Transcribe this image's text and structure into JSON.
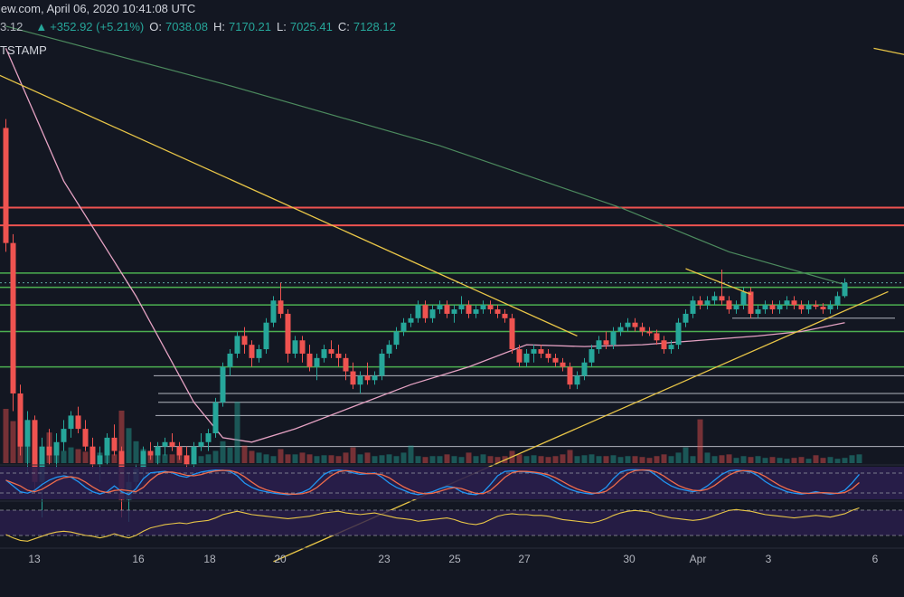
{
  "header": {
    "source_line": "iew.com, April 06, 2020 10:41:08 UTC",
    "last_price_fragment": "3.12",
    "change_arrow": "▲",
    "change": "+352.92 (+5.21%)",
    "open_label": "O:",
    "open": "7038.08",
    "high_label": "H:",
    "high": "7170.21",
    "low_label": "L:",
    "low": "7025.41",
    "close_label": "C:",
    "close": "7128.12",
    "exchange": "TSTAMP"
  },
  "colors": {
    "background": "#131722",
    "up": "#26a69a",
    "down": "#ef5350",
    "resistance": "#ef5350",
    "support": "#4caf50",
    "trendline": "#e8c547",
    "ma_pink": "#e5a2c3",
    "ma_green": "#4c8a5e",
    "stoch_k": "#2196f3",
    "stoch_d": "#ef6c4b",
    "rsi": "#e8c547",
    "panel_fill": "#2a1e4d"
  },
  "chart_data": {
    "type": "candlestick",
    "x_tick_labels": [
      "13",
      "16",
      "18",
      "20",
      "23",
      "25",
      "27",
      "30",
      "Apr",
      "3",
      "6"
    ],
    "candles": [
      [
        8900,
        9000,
        7500,
        7600
      ],
      [
        7600,
        7700,
        5700,
        5900
      ],
      [
        5900,
        6000,
        5200,
        5300
      ],
      [
        5300,
        5700,
        5000,
        5600
      ],
      [
        5600,
        5650,
        4800,
        4900
      ],
      [
        4900,
        5400,
        4500,
        5300
      ],
      [
        5300,
        5500,
        5100,
        5200
      ],
      [
        5200,
        5450,
        5050,
        5350
      ],
      [
        5350,
        5600,
        5250,
        5500
      ],
      [
        5500,
        5700,
        5400,
        5650
      ],
      [
        5650,
        5750,
        5450,
        5500
      ],
      [
        5500,
        5600,
        5250,
        5300
      ],
      [
        5300,
        5400,
        5050,
        5100
      ],
      [
        5100,
        5300,
        4900,
        5200
      ],
      [
        5200,
        5450,
        5100,
        5400
      ],
      [
        5400,
        5550,
        5200,
        5250
      ],
      [
        5250,
        5300,
        4500,
        4700
      ],
      [
        4700,
        5000,
        4450,
        4900
      ],
      [
        4900,
        5100,
        4800,
        5050
      ],
      [
        5050,
        5300,
        4950,
        5250
      ],
      [
        5250,
        5350,
        5150,
        5200
      ],
      [
        5200,
        5350,
        5100,
        5300
      ],
      [
        5300,
        5400,
        5200,
        5350
      ],
      [
        5350,
        5450,
        5250,
        5300
      ],
      [
        5300,
        5350,
        5150,
        5200
      ],
      [
        5200,
        5300,
        5050,
        5100
      ],
      [
        5100,
        5350,
        5050,
        5300
      ],
      [
        5300,
        5450,
        5250,
        5350
      ],
      [
        5350,
        5500,
        5250,
        5450
      ],
      [
        5450,
        5850,
        5400,
        5800
      ],
      [
        5800,
        6250,
        5750,
        6200
      ],
      [
        6200,
        6400,
        6100,
        6350
      ],
      [
        6350,
        6600,
        6300,
        6550
      ],
      [
        6550,
        6650,
        6350,
        6450
      ],
      [
        6450,
        6500,
        6200,
        6300
      ],
      [
        6300,
        6450,
        6250,
        6400
      ],
      [
        6400,
        6750,
        6350,
        6700
      ],
      [
        6700,
        7000,
        6650,
        6950
      ],
      [
        6950,
        7150,
        6750,
        6800
      ],
      [
        6800,
        6850,
        6250,
        6350
      ],
      [
        6350,
        6550,
        6300,
        6500
      ],
      [
        6500,
        6550,
        6250,
        6350
      ],
      [
        6350,
        6450,
        6150,
        6200
      ],
      [
        6200,
        6350,
        6050,
        6300
      ],
      [
        6300,
        6450,
        6250,
        6400
      ],
      [
        6400,
        6500,
        6300,
        6350
      ],
      [
        6350,
        6450,
        6200,
        6300
      ],
      [
        6300,
        6350,
        6050,
        6150
      ],
      [
        6150,
        6250,
        5950,
        6000
      ],
      [
        6000,
        6150,
        5900,
        6100
      ],
      [
        6100,
        6250,
        6000,
        6050
      ],
      [
        6050,
        6150,
        6000,
        6100
      ],
      [
        6100,
        6400,
        6050,
        6350
      ],
      [
        6350,
        6500,
        6300,
        6450
      ],
      [
        6450,
        6650,
        6400,
        6600
      ],
      [
        6600,
        6750,
        6550,
        6700
      ],
      [
        6700,
        6800,
        6650,
        6750
      ],
      [
        6750,
        6950,
        6700,
        6900
      ],
      [
        6900,
        6950,
        6700,
        6750
      ],
      [
        6750,
        6900,
        6700,
        6850
      ],
      [
        6850,
        6950,
        6800,
        6900
      ],
      [
        6900,
        6950,
        6750,
        6800
      ],
      [
        6800,
        6900,
        6700,
        6850
      ],
      [
        6850,
        7000,
        6800,
        6900
      ],
      [
        6900,
        6950,
        6750,
        6800
      ],
      [
        6800,
        6900,
        6750,
        6850
      ],
      [
        6850,
        6950,
        6800,
        6900
      ],
      [
        6900,
        6950,
        6800,
        6850
      ],
      [
        6850,
        6900,
        6750,
        6800
      ],
      [
        6800,
        6850,
        6700,
        6750
      ],
      [
        6750,
        6800,
        6350,
        6400
      ],
      [
        6400,
        6450,
        6200,
        6250
      ],
      [
        6250,
        6400,
        6200,
        6350
      ],
      [
        6350,
        6450,
        6250,
        6400
      ],
      [
        6400,
        6450,
        6300,
        6350
      ],
      [
        6350,
        6400,
        6250,
        6300
      ],
      [
        6300,
        6350,
        6200,
        6250
      ],
      [
        6250,
        6300,
        6150,
        6200
      ],
      [
        6200,
        6250,
        5950,
        6000
      ],
      [
        6000,
        6150,
        5950,
        6100
      ],
      [
        6100,
        6300,
        6050,
        6250
      ],
      [
        6250,
        6450,
        6200,
        6400
      ],
      [
        6400,
        6550,
        6350,
        6500
      ],
      [
        6500,
        6600,
        6400,
        6450
      ],
      [
        6450,
        6650,
        6400,
        6600
      ],
      [
        6600,
        6700,
        6550,
        6650
      ],
      [
        6650,
        6750,
        6600,
        6700
      ],
      [
        6700,
        6750,
        6600,
        6650
      ],
      [
        6650,
        6700,
        6550,
        6600
      ],
      [
        6600,
        6650,
        6550,
        6580
      ],
      [
        6580,
        6620,
        6450,
        6500
      ],
      [
        6500,
        6550,
        6350,
        6400
      ],
      [
        6400,
        6500,
        6350,
        6450
      ],
      [
        6450,
        6750,
        6400,
        6700
      ],
      [
        6700,
        6850,
        6650,
        6800
      ],
      [
        6800,
        7000,
        6750,
        6950
      ],
      [
        6950,
        7000,
        6850,
        6900
      ],
      [
        6900,
        7000,
        6850,
        6950
      ],
      [
        6950,
        7050,
        6900,
        7000
      ],
      [
        7000,
        7300,
        6900,
        6950
      ],
      [
        6950,
        7000,
        6800,
        6850
      ],
      [
        6850,
        6950,
        6800,
        6900
      ],
      [
        6900,
        7100,
        6850,
        7050
      ],
      [
        7050,
        7100,
        6750,
        6800
      ],
      [
        6800,
        6900,
        6750,
        6850
      ],
      [
        6850,
        6950,
        6800,
        6900
      ],
      [
        6900,
        6950,
        6800,
        6850
      ],
      [
        6850,
        6950,
        6800,
        6900
      ],
      [
        6900,
        7000,
        6850,
        6950
      ],
      [
        6950,
        7000,
        6850,
        6900
      ],
      [
        6900,
        6950,
        6800,
        6850
      ],
      [
        6850,
        6950,
        6800,
        6900
      ],
      [
        6900,
        6950,
        6850,
        6880
      ],
      [
        6880,
        6920,
        6800,
        6850
      ],
      [
        6850,
        6950,
        6800,
        6900
      ],
      [
        6900,
        7050,
        6850,
        7000
      ],
      [
        7000,
        7200,
        6980,
        7150
      ]
    ],
    "ma_pink": [
      [
        0,
        9800
      ],
      [
        8,
        8300
      ],
      [
        18,
        7000
      ],
      [
        26,
        5800
      ],
      [
        30,
        5400
      ],
      [
        34,
        5350
      ],
      [
        40,
        5500
      ],
      [
        48,
        5750
      ],
      [
        56,
        6000
      ],
      [
        64,
        6200
      ],
      [
        72,
        6450
      ],
      [
        80,
        6430
      ],
      [
        88,
        6450
      ],
      [
        96,
        6500
      ],
      [
        104,
        6550
      ],
      [
        110,
        6600
      ],
      [
        116,
        6700
      ]
    ],
    "ma_green": [
      [
        0,
        10050
      ],
      [
        30,
        9400
      ],
      [
        60,
        8700
      ],
      [
        85,
        8000
      ],
      [
        100,
        7500
      ],
      [
        116,
        7130
      ]
    ],
    "horizontal_levels": {
      "resistance": [
        8000,
        7800
      ],
      "support": [
        7260,
        7100,
        6900,
        6600,
        6200
      ],
      "minor": [
        6100,
        5900,
        5800,
        5650,
        5300,
        6750
      ],
      "price_dotted": 7150
    },
    "trendlines": [
      {
        "from": [
          -1,
          9500
        ],
        "to": [
          79,
          6550
        ]
      },
      {
        "from": [
          94,
          7310
        ],
        "to": [
          103,
          7020
        ]
      },
      {
        "from": [
          37,
          4000
        ],
        "to": [
          122,
          7050
        ]
      },
      {
        "from": [
          120,
          9800
        ],
        "to": [
          126,
          9700
        ]
      }
    ],
    "volume": [
      62,
      48,
      30,
      20,
      22,
      18,
      35,
      15,
      14,
      18,
      16,
      13,
      11,
      12,
      16,
      10,
      60,
      40,
      25,
      16,
      14,
      12,
      10,
      10,
      9,
      9,
      12,
      8,
      10,
      14,
      25,
      18,
      70,
      20,
      14,
      12,
      10,
      8,
      16,
      10,
      10,
      12,
      10,
      8,
      9,
      9,
      8,
      12,
      18,
      10,
      12,
      8,
      9,
      10,
      8,
      12,
      20,
      8,
      7,
      8,
      8,
      10,
      8,
      7,
      12,
      8,
      10,
      8,
      7,
      8,
      14,
      10,
      8,
      9,
      8,
      7,
      8,
      10,
      15,
      8,
      9,
      10,
      8,
      8,
      9,
      7,
      8,
      8,
      7,
      6,
      8,
      10,
      8,
      12,
      18,
      8,
      50,
      12,
      8,
      9,
      10,
      6,
      8,
      7,
      8,
      6,
      7,
      6,
      5,
      6,
      7,
      5,
      9,
      6,
      7,
      5,
      6,
      9,
      10
    ],
    "stoch_k": [
      60,
      40,
      20,
      15,
      25,
      45,
      60,
      70,
      75,
      70,
      55,
      35,
      20,
      12,
      20,
      40,
      20,
      10,
      30,
      65,
      85,
      88,
      90,
      85,
      75,
      70,
      80,
      88,
      92,
      95,
      94,
      90,
      75,
      50,
      35,
      25,
      20,
      15,
      12,
      10,
      12,
      18,
      30,
      55,
      80,
      92,
      95,
      92,
      85,
      80,
      82,
      85,
      70,
      50,
      35,
      25,
      15,
      10,
      14,
      20,
      30,
      38,
      35,
      20,
      12,
      10,
      18,
      45,
      75,
      90,
      92,
      90,
      88,
      85,
      80,
      70,
      55,
      40,
      28,
      20,
      15,
      12,
      18,
      35,
      65,
      88,
      95,
      96,
      95,
      92,
      75,
      55,
      40,
      30,
      25,
      20,
      25,
      40,
      60,
      80,
      92,
      95,
      92,
      88,
      75,
      55,
      40,
      30,
      20,
      15,
      12,
      15,
      20,
      15,
      12,
      15,
      25,
      50,
      80
    ],
    "rsi": [
      32,
      28,
      25,
      24,
      27,
      30,
      33,
      35,
      36,
      35,
      33,
      31,
      30,
      28,
      30,
      33,
      30,
      28,
      31,
      36,
      40,
      42,
      44,
      45,
      46,
      45,
      47,
      48,
      49,
      52,
      56,
      58,
      60,
      58,
      56,
      55,
      54,
      53,
      52,
      51,
      52,
      53,
      54,
      56,
      58,
      59,
      60,
      58,
      57,
      56,
      57,
      58,
      56,
      54,
      52,
      51,
      50,
      48,
      49,
      50,
      51,
      52,
      50,
      47,
      45,
      44,
      46,
      50,
      54,
      56,
      57,
      56,
      56,
      55,
      55,
      54,
      52,
      50,
      49,
      48,
      47,
      46,
      48,
      51,
      55,
      58,
      60,
      61,
      60,
      59,
      56,
      54,
      52,
      51,
      50,
      49,
      50,
      52,
      55,
      58,
      61,
      62,
      61,
      60,
      58,
      56,
      55,
      54,
      53,
      52,
      53,
      54,
      55,
      54,
      53,
      55,
      57,
      61,
      64
    ]
  }
}
